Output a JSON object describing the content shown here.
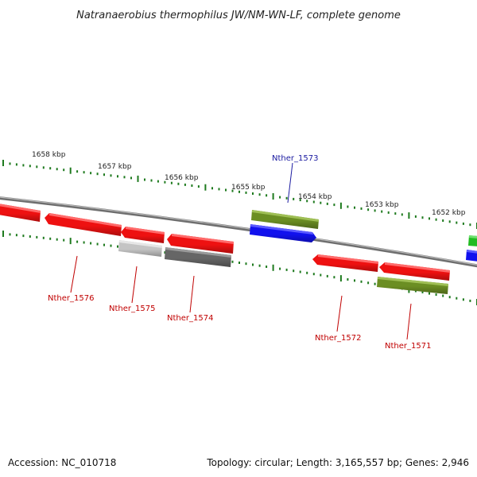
{
  "title": "Natranaerobius thermophilus JW/NM-WN-LF, complete genome",
  "footer": {
    "accession": "Accession: NC_010718",
    "summary": "Topology: circular; Length: 3,165,557 bp; Genes: 2,946"
  },
  "colors": {
    "backbone": "#8a8a8a",
    "tick": "#1e7a1e",
    "forward_label": "#1a1aa0",
    "reverse_label": "#c00000",
    "red": "#ee1111",
    "olive": "#6b8e23",
    "blue": "#1111ee",
    "lightgray": "#c4c4c4",
    "darkgray": "#666666",
    "green": "#22bb22"
  },
  "kbp_labels": [
    "1658 kbp",
    "1657 kbp",
    "1656 kbp",
    "1655 kbp",
    "1654 kbp",
    "1653 kbp",
    "1652 kbp"
  ],
  "gene_labels": [
    "Nther_1573",
    "Nther_1576",
    "Nther_1575",
    "Nther_1574",
    "Nther_1572",
    "Nther_1571"
  ]
}
